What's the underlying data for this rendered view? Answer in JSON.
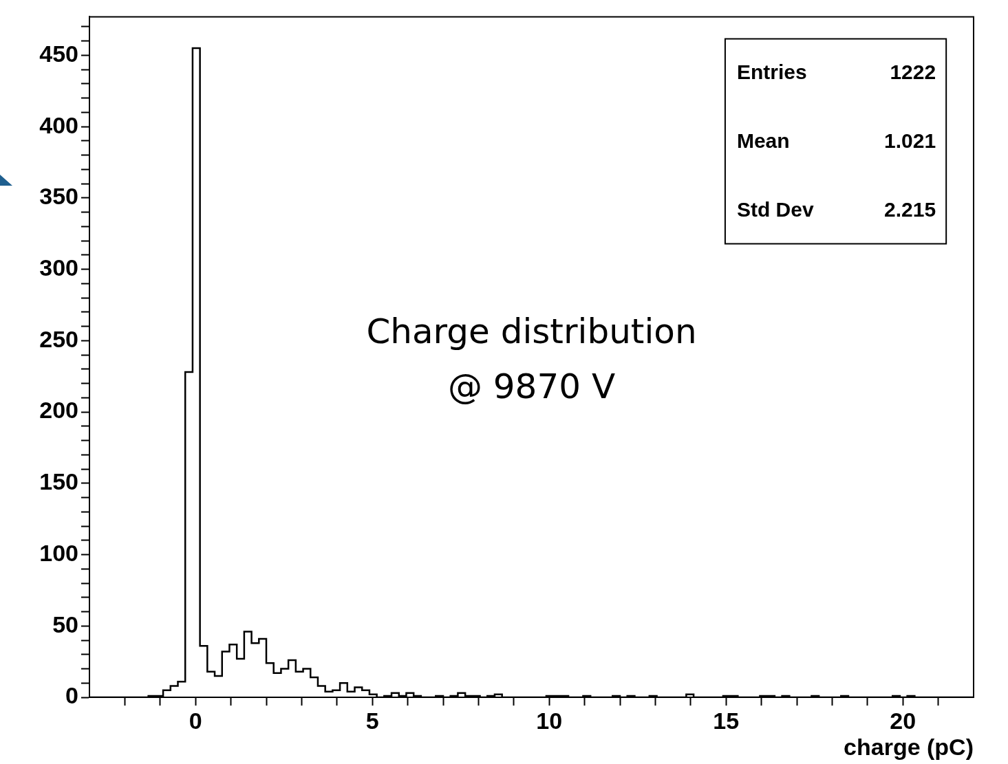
{
  "chart_data": {
    "type": "histogram",
    "title": "Charge distribution",
    "subtitle": "@ 9870 V",
    "xlabel": "charge (pC)",
    "bins": [
      -3,
      -2.7917,
      -2.5833,
      -2.375,
      -2.1667,
      -1.9583,
      -1.75,
      -1.5417,
      -1.3333,
      -1.125,
      -0.9167,
      -0.7083,
      -0.5,
      -0.2917,
      -0.0833,
      0.125,
      0.3333,
      0.5417,
      0.75,
      0.9583,
      1.1667,
      1.375,
      1.5833,
      1.7917,
      2,
      2.2083,
      2.4167,
      2.625,
      2.8333,
      3.0417,
      3.25,
      3.4583,
      3.6667,
      3.875,
      4.0833,
      4.2917,
      4.5,
      4.7083,
      4.9167,
      5.125,
      5.3333,
      5.5417,
      5.75,
      5.9583,
      6.1667,
      6.375,
      6.5833,
      6.7917,
      7,
      7.2083,
      7.4167,
      7.625,
      7.8333,
      8.0417,
      8.25,
      8.4583,
      8.6667,
      8.875,
      9.0833,
      9.2917,
      9.5,
      9.7083,
      9.9167,
      10.125,
      10.3333,
      10.5417,
      10.75,
      10.9583,
      11.1667,
      11.375,
      11.5833,
      11.7917,
      12,
      12.2083,
      12.4167,
      12.625,
      12.8333,
      13.0417,
      13.25,
      13.4583,
      13.6667,
      13.875,
      14.0833,
      14.2917,
      14.5,
      14.7083,
      14.9167,
      15.125,
      15.3333,
      15.5417,
      15.75,
      15.9583,
      16.1667,
      16.375,
      16.5833,
      16.7917,
      17,
      17.2083,
      17.4167,
      17.625,
      17.8333,
      18.0417,
      18.25,
      18.4583,
      18.6667,
      18.875,
      19.0833,
      19.2917,
      19.5,
      19.7083,
      19.9167,
      20.125,
      20.3333,
      20.5417,
      20.75,
      20.9583,
      21.1667,
      21.375,
      21.5833,
      21.7917,
      22
    ],
    "values": [
      0,
      0,
      0,
      0,
      0,
      0,
      0,
      0,
      1,
      1,
      5,
      8,
      11,
      228,
      455,
      36,
      18,
      15,
      32,
      37,
      27,
      46,
      38,
      41,
      24,
      17,
      20,
      26,
      18,
      20,
      14,
      8,
      4,
      5,
      10,
      4,
      7,
      5,
      2,
      0,
      1,
      3,
      1,
      3,
      1,
      0,
      0,
      1,
      0,
      1,
      3,
      1,
      1,
      0,
      1,
      2,
      0,
      0,
      0,
      0,
      0,
      0,
      1,
      1,
      1,
      0,
      0,
      1,
      0,
      0,
      0,
      1,
      0,
      1,
      0,
      0,
      1,
      0,
      0,
      0,
      0,
      2,
      0,
      0,
      0,
      0,
      1,
      1,
      0,
      0,
      0,
      1,
      1,
      0,
      1,
      0,
      0,
      0,
      1,
      0,
      0,
      0,
      1,
      0,
      0,
      0,
      0,
      0,
      0,
      1,
      0,
      1,
      0,
      0,
      0,
      0,
      0,
      0,
      0,
      0
    ],
    "color": "#000000",
    "xlim": [
      -3,
      22
    ],
    "ylim": [
      0,
      477
    ],
    "xticks": [
      {
        "value": -2,
        "label": null
      },
      {
        "value": -1,
        "label": null
      },
      0,
      {
        "value": 1,
        "label": null
      },
      {
        "value": 2,
        "label": null
      },
      {
        "value": 3,
        "label": null
      },
      {
        "value": 4,
        "label": null
      },
      5,
      {
        "value": 6,
        "label": null
      },
      {
        "value": 7,
        "label": null
      },
      {
        "value": 8,
        "label": null
      },
      {
        "value": 9,
        "label": null
      },
      10,
      {
        "value": 11,
        "label": null
      },
      {
        "value": 12,
        "label": null
      },
      {
        "value": 13,
        "label": null
      },
      {
        "value": 14,
        "label": null
      },
      15,
      {
        "value": 16,
        "label": null
      },
      {
        "value": 17,
        "label": null
      },
      {
        "value": 18,
        "label": null
      },
      {
        "value": 19,
        "label": null
      },
      20,
      {
        "value": 21,
        "label": null
      }
    ],
    "yticks": [
      0,
      {
        "value": 10,
        "label": null
      },
      {
        "value": 20,
        "label": null
      },
      {
        "value": 30,
        "label": null
      },
      {
        "value": 40,
        "label": null
      },
      50,
      {
        "value": 60,
        "label": null
      },
      {
        "value": 70,
        "label": null
      },
      {
        "value": 80,
        "label": null
      },
      {
        "value": 90,
        "label": null
      },
      100,
      {
        "value": 110,
        "label": null
      },
      {
        "value": 120,
        "label": null
      },
      {
        "value": 130,
        "label": null
      },
      {
        "value": 140,
        "label": null
      },
      150,
      {
        "value": 160,
        "label": null
      },
      {
        "value": 170,
        "label": null
      },
      {
        "value": 180,
        "label": null
      },
      {
        "value": 190,
        "label": null
      },
      200,
      {
        "value": 210,
        "label": null
      },
      {
        "value": 220,
        "label": null
      },
      {
        "value": 230,
        "label": null
      },
      {
        "value": 240,
        "label": null
      },
      250,
      {
        "value": 260,
        "label": null
      },
      {
        "value": 270,
        "label": null
      },
      {
        "value": 280,
        "label": null
      },
      {
        "value": 290,
        "label": null
      },
      300,
      {
        "value": 310,
        "label": null
      },
      {
        "value": 320,
        "label": null
      },
      {
        "value": 330,
        "label": null
      },
      {
        "value": 340,
        "label": null
      },
      350,
      {
        "value": 360,
        "label": null
      },
      {
        "value": 370,
        "label": null
      },
      {
        "value": 380,
        "label": null
      },
      {
        "value": 390,
        "label": null
      },
      400,
      {
        "value": 410,
        "label": null
      },
      {
        "value": 420,
        "label": null
      },
      {
        "value": 430,
        "label": null
      },
      {
        "value": 440,
        "label": null
      },
      450,
      {
        "value": 460,
        "label": null
      },
      {
        "value": 470,
        "label": null
      }
    ],
    "grid": false,
    "legend": false,
    "annotations": [
      "Entries",
      "1222",
      "Mean",
      "1.021",
      "Std Dev",
      "2.215"
    ]
  }
}
